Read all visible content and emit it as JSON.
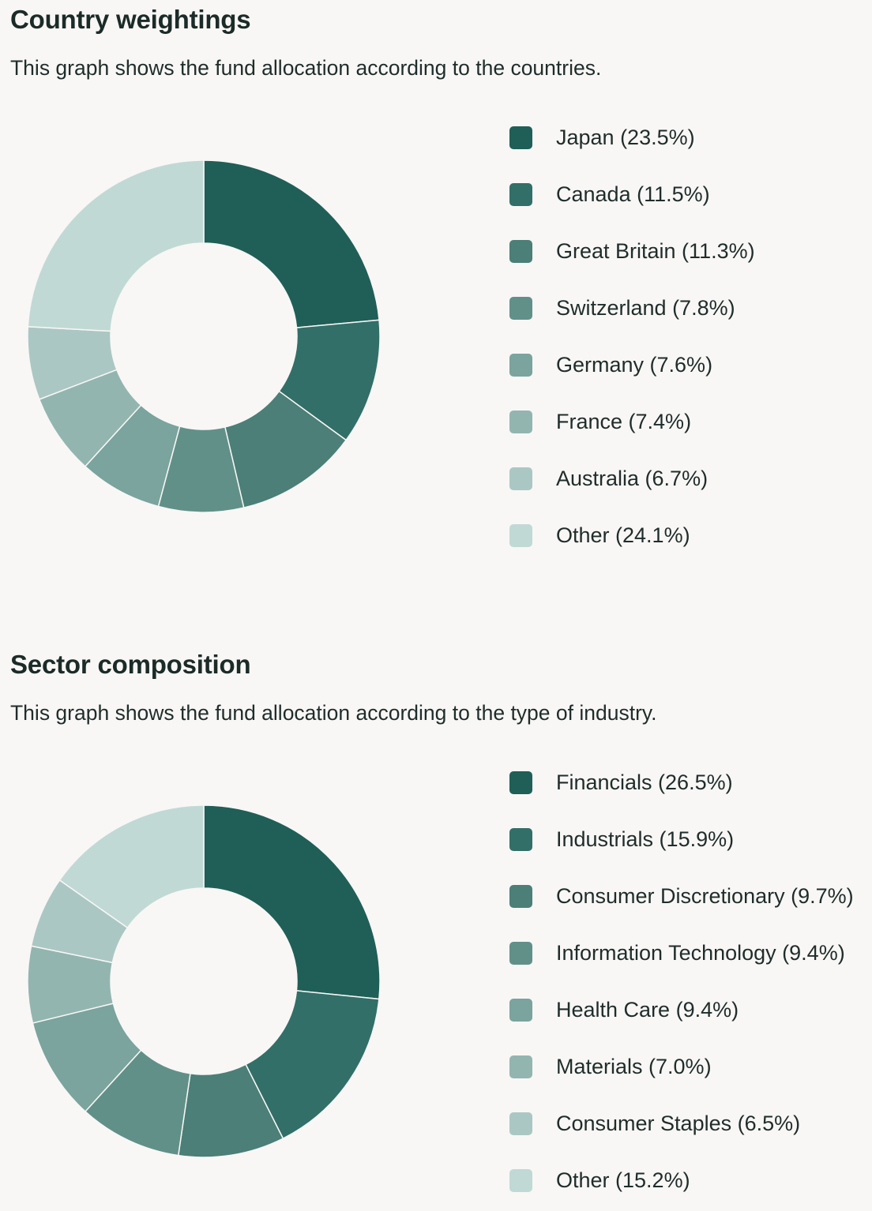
{
  "chart_data": [
    {
      "type": "pie",
      "title": "Country weightings",
      "subtitle": "This graph shows the fund allocation according to the countries.",
      "legend_position": "right",
      "categories": [
        "Japan",
        "Canada",
        "Great Britain",
        "Switzerland",
        "Germany",
        "France",
        "Australia",
        "Other"
      ],
      "values": [
        23.5,
        11.5,
        11.3,
        7.8,
        7.6,
        7.4,
        6.7,
        24.1
      ],
      "legend_labels": [
        "Japan (23.5%)",
        "Canada (11.5%)",
        "Great Britain (11.3%)",
        "Switzerland (7.8%)",
        "Germany (7.6%)",
        "France (7.4%)",
        "Australia (6.7%)",
        "Other (24.1%)"
      ],
      "colors": [
        "#1f5f57",
        "#326f68",
        "#4b7f78",
        "#619089",
        "#7aa49d",
        "#93b5b0",
        "#abc7c3",
        "#c1d9d5"
      ]
    },
    {
      "type": "pie",
      "title": "Sector composition",
      "subtitle": "This graph shows the fund allocation according to the type of industry.",
      "legend_position": "right",
      "categories": [
        "Financials",
        "Industrials",
        "Consumer Discretionary",
        "Information Technology",
        "Health Care",
        "Materials",
        "Consumer Staples",
        "Other"
      ],
      "values": [
        26.5,
        15.9,
        9.7,
        9.4,
        9.4,
        7.0,
        6.5,
        15.2
      ],
      "legend_labels": [
        "Financials (26.5%)",
        "Industrials (15.9%)",
        "Consumer Discretionary (9.7%)",
        "Information Technology (9.4%)",
        "Health Care (9.4%)",
        "Materials (7.0%)",
        "Consumer Staples (6.5%)",
        "Other (15.2%)"
      ],
      "colors": [
        "#1f5f57",
        "#326f68",
        "#4b7f78",
        "#619089",
        "#7aa49d",
        "#93b5b0",
        "#abc7c3",
        "#c1d9d5"
      ]
    }
  ]
}
